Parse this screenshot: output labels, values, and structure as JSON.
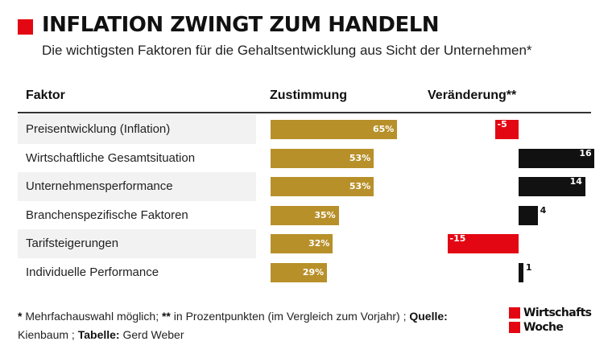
{
  "header": {
    "title": "INFLATION ZWINGT ZUM HANDELN",
    "subtitle": "Die wichtigsten Faktoren für die Gehaltsentwicklung aus Sicht der Unternehmen*"
  },
  "columns": {
    "factor": "Faktor",
    "approval": "Zustimmung",
    "change": "Veränderung**"
  },
  "chart_data": {
    "type": "table",
    "title": "INFLATION ZWINGT ZUM HANDELN",
    "subtitle": "Die wichtigsten Faktoren für die Gehaltsentwicklung aus Sicht der Unternehmen*",
    "categories": [
      "Preisentwicklung (Inflation)",
      "Wirtschaftliche Gesamtsituation",
      "Unternehmensperformance",
      "Branchenspezifische Faktoren",
      "Tarifsteigerungen",
      "Individuelle Performance"
    ],
    "series": [
      {
        "name": "Zustimmung",
        "values": [
          65,
          53,
          53,
          35,
          32,
          29
        ],
        "labels": [
          "65%",
          "53%",
          "53%",
          "35%",
          "32%",
          "29%"
        ],
        "color": "#b8902a"
      },
      {
        "name": "Veränderung**",
        "values": [
          -5,
          16,
          14,
          4,
          -15,
          1
        ],
        "labels": [
          "-5",
          "16",
          "14",
          "4",
          "-15",
          "1"
        ],
        "negative_color": "#e30613",
        "positive_color": "#111111"
      }
    ]
  },
  "footnote": {
    "part1_bold": "*",
    "part1": " Mehrfachauswahl möglich; ",
    "part2_bold": "**",
    "part2": " in Prozentpunkten (im Vergleich zum Vorjahr) ; ",
    "source_label": "Quelle:",
    "source": " Kienbaum ; ",
    "table_label": "Tabelle:",
    "author": " Gerd Weber"
  },
  "logo": {
    "line1": "Wirtschafts",
    "line2": "Woche",
    "accent": "#e30613"
  }
}
